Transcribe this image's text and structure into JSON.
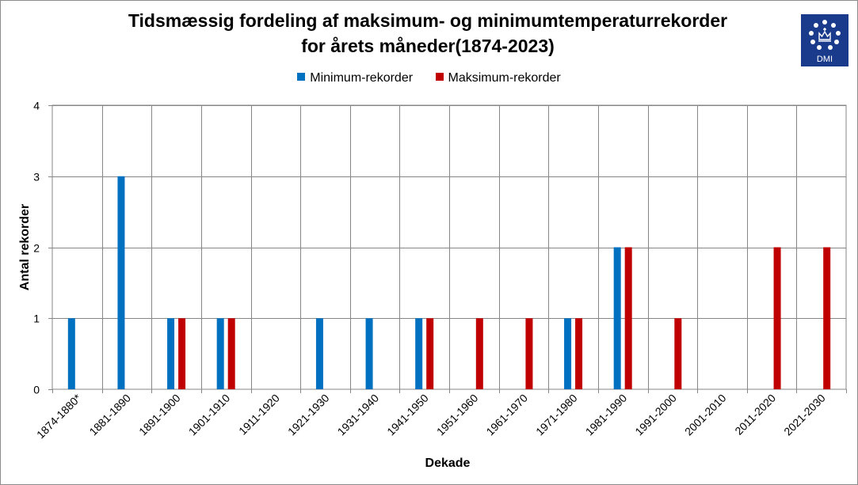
{
  "chart_data": {
    "type": "bar",
    "title_lines": [
      "Tidsmæssig fordeling af maksimum- og minimumtemperaturrekorder",
      "for årets måneder(1874-2023)"
    ],
    "xlabel": "Dekade",
    "ylabel": "Antal rekorder",
    "ylim": [
      0,
      4
    ],
    "yticks": [
      "0",
      "1",
      "2",
      "3",
      "4"
    ],
    "grid": true,
    "legend_position": "top-center",
    "categories": [
      "1874-1880*",
      "1881-1890",
      "1891-1900",
      "1901-1910",
      "1911-1920",
      "1921-1930",
      "1931-1940",
      "1941-1950",
      "1951-1960",
      "1961-1970",
      "1971-1980",
      "1981-1990",
      "1991-2000",
      "2001-2010",
      "2011-2020",
      "2021-2030"
    ],
    "series": [
      {
        "name": "Minimum-rekorder",
        "color": "#0070c0",
        "values": [
          1,
          3,
          1,
          1,
          0,
          1,
          1,
          1,
          0,
          0,
          1,
          2,
          0,
          0,
          0,
          0
        ]
      },
      {
        "name": "Maksimum-rekorder",
        "color": "#c00000",
        "values": [
          0,
          0,
          1,
          1,
          0,
          0,
          0,
          1,
          1,
          1,
          1,
          2,
          1,
          0,
          2,
          2
        ]
      }
    ]
  },
  "logo": {
    "text": "DMI",
    "icon": "dmi-crown-logo-icon"
  }
}
